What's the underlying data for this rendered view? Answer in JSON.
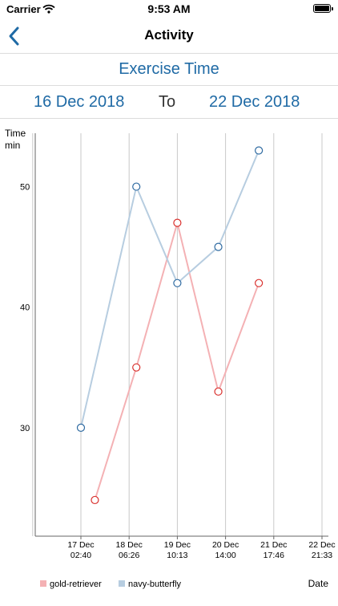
{
  "status_bar": {
    "carrier": "Carrier",
    "time": "9:53 AM"
  },
  "nav": {
    "title": "Activity",
    "back_icon": "chevron-left-icon"
  },
  "section": {
    "title": "Exercise Time"
  },
  "date_range": {
    "from": "16 Dec 2018",
    "to_label": "To",
    "to": "22 Dec 2018"
  },
  "colors": {
    "accent": "#1f6aa5",
    "gold_retriever": "#f4b1b4",
    "gold_retriever_marker": "#d9302d",
    "navy_butterfly": "#b7cde0",
    "navy_butterfly_marker": "#2e6aa1"
  },
  "chart_data": {
    "type": "line",
    "ylabel": "Time\nmin",
    "xlabel": "Date",
    "ylim": [
      21,
      55.5
    ],
    "yticks": [
      30,
      40,
      50
    ],
    "x_ticks": [
      {
        "day": "17 Dec",
        "time": "02:40"
      },
      {
        "day": "18 Dec",
        "time": "06:26"
      },
      {
        "day": "19 Dec",
        "time": "10:13"
      },
      {
        "day": "20 Dec",
        "time": "14:00"
      },
      {
        "day": "21 Dec",
        "time": "17:46"
      },
      {
        "day": "22 Dec",
        "time": "21:33"
      }
    ],
    "grid": true,
    "legend_placement": "bottom-left",
    "series": [
      {
        "name": "gold-retriever",
        "x": [
          0.29,
          1.15,
          2.0,
          2.85,
          3.69
        ],
        "values": [
          24,
          35,
          47,
          33,
          42
        ]
      },
      {
        "name": "navy-butterfly",
        "x": [
          0.0,
          1.15,
          2.0,
          2.85,
          3.69
        ],
        "values": [
          30,
          50,
          42,
          45,
          53
        ]
      }
    ]
  }
}
